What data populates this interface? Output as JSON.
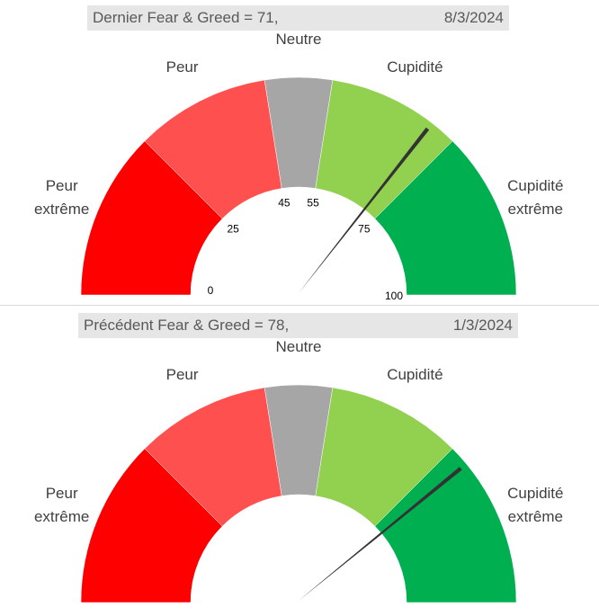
{
  "chart_data": [
    {
      "type": "gauge",
      "title": "Dernier Fear & Greed = 71,",
      "date": "8/3/2024",
      "value": 71,
      "range": [
        0,
        100
      ],
      "zones": [
        {
          "from": 0,
          "to": 25,
          "color": "#ff0000",
          "label_lines": [
            "Peur",
            "extrême"
          ]
        },
        {
          "from": 25,
          "to": 45,
          "color": "#ff5050",
          "label_lines": [
            "Peur"
          ]
        },
        {
          "from": 45,
          "to": 55,
          "color": "#a6a6a6",
          "label_lines": [
            "Neutre"
          ]
        },
        {
          "from": 55,
          "to": 75,
          "color": "#92d050",
          "label_lines": [
            "Cupidité"
          ]
        },
        {
          "from": 75,
          "to": 100,
          "color": "#00b050",
          "label_lines": [
            "Cupidité",
            "extrême"
          ]
        }
      ],
      "tick_labels": [
        "0",
        "25",
        "45",
        "55",
        "75",
        "100"
      ],
      "tick_values": [
        0,
        25,
        45,
        55,
        75,
        100
      ]
    },
    {
      "type": "gauge",
      "title": "Précédent Fear & Greed = 78,",
      "date": "1/3/2024",
      "value": 78,
      "range": [
        0,
        100
      ],
      "zones": [
        {
          "from": 0,
          "to": 25,
          "color": "#ff0000",
          "label_lines": [
            "Peur",
            "extrême"
          ]
        },
        {
          "from": 25,
          "to": 45,
          "color": "#ff5050",
          "label_lines": [
            "Peur"
          ]
        },
        {
          "from": 45,
          "to": 55,
          "color": "#a6a6a6",
          "label_lines": [
            "Neutre"
          ]
        },
        {
          "from": 55,
          "to": 75,
          "color": "#92d050",
          "label_lines": [
            "Cupidité"
          ]
        },
        {
          "from": 75,
          "to": 100,
          "color": "#00b050",
          "label_lines": [
            "Cupidité",
            "extrême"
          ]
        }
      ],
      "tick_labels": [],
      "tick_values": []
    }
  ],
  "needle_color": "#333333"
}
